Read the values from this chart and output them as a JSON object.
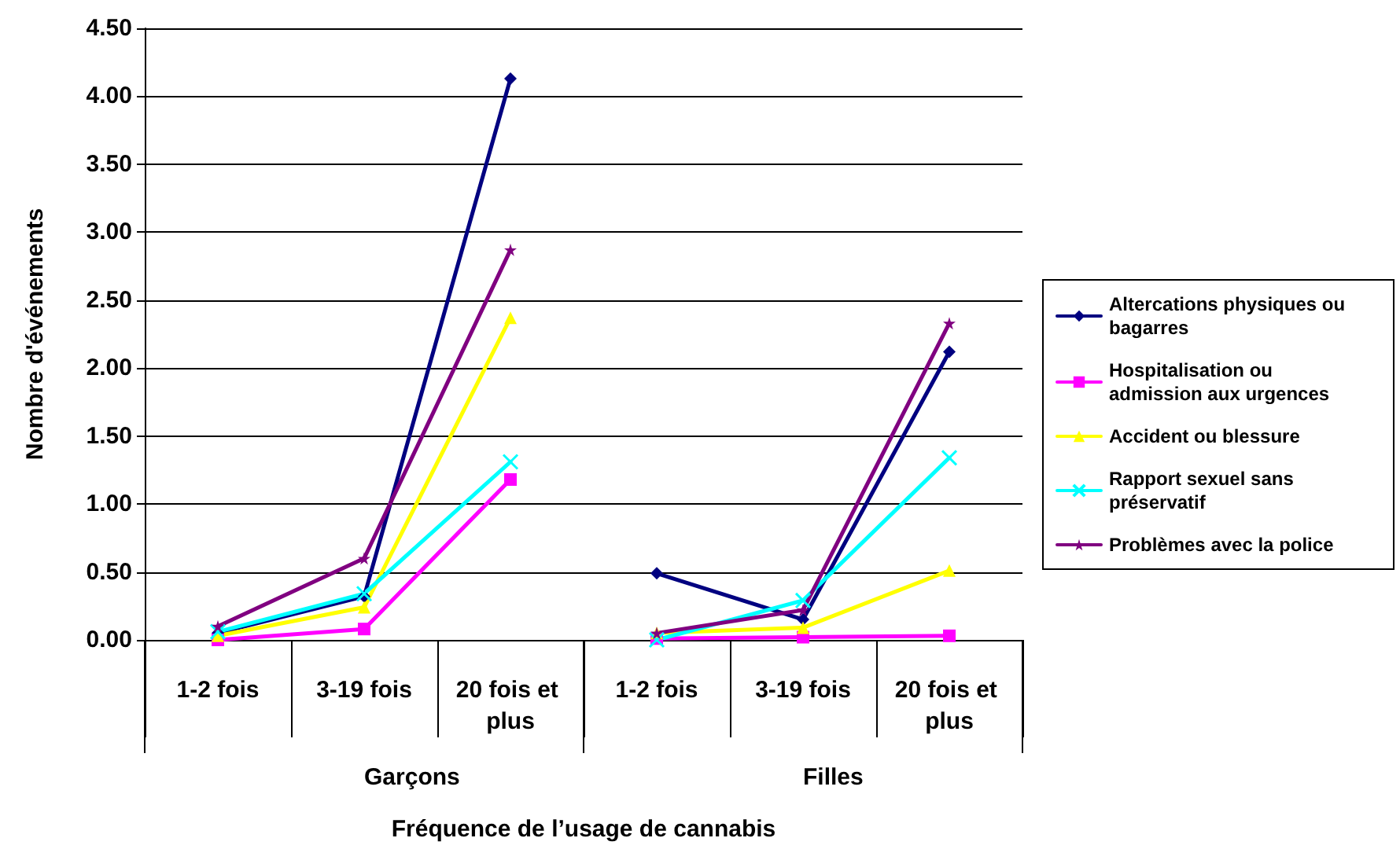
{
  "chart_data": {
    "type": "line",
    "xlabel": "Fréquence de l’usage de cannabis",
    "ylabel": "Nombre d'événements",
    "categories": [
      "1-2 fois",
      "3-19 fois",
      "20 fois et plus",
      "1-2 fois",
      "3-19 fois",
      "20 fois et plus"
    ],
    "annotations": [
      "Garçons",
      "Filles"
    ],
    "ylim": [
      0,
      4.5
    ],
    "yticks": [
      {
        "value": 0,
        "label": "0.00"
      },
      {
        "value": 0.5,
        "label": "0.50"
      },
      {
        "value": 1,
        "label": "1.00"
      },
      {
        "value": 1.5,
        "label": "1.50"
      },
      {
        "value": 2,
        "label": "2.00"
      },
      {
        "value": 2.5,
        "label": "2.50"
      },
      {
        "value": 3,
        "label": "3.00"
      },
      {
        "value": 3.5,
        "label": "3.50"
      },
      {
        "value": 4,
        "label": "4.00"
      },
      {
        "value": 4.5,
        "label": "4.50"
      }
    ],
    "grid": "y",
    "legend": "right",
    "series": [
      {
        "name": "Altercations physiques ou bagarres",
        "color": "#000080",
        "marker": "diamond",
        "values": [
          0.05,
          0.32,
          4.13,
          0.49,
          0.15,
          2.12
        ]
      },
      {
        "name": "Hospitalisation ou admission aux urgences",
        "color": "#ff00ff",
        "marker": "square",
        "values": [
          0.0,
          0.08,
          1.18,
          0.01,
          0.02,
          0.03
        ]
      },
      {
        "name": "Accident ou blessure",
        "color": "#ffff00",
        "marker": "triangle",
        "values": [
          0.03,
          0.24,
          2.37,
          0.05,
          0.09,
          0.51
        ]
      },
      {
        "name": "Rapport sexuel sans préservatif",
        "color": "#00ffff",
        "marker": "cross",
        "values": [
          0.06,
          0.34,
          1.31,
          0.0,
          0.29,
          1.34
        ]
      },
      {
        "name": "Problèmes avec la police",
        "color": "#800080",
        "marker": "star",
        "values": [
          0.1,
          0.6,
          2.87,
          0.05,
          0.22,
          2.33
        ]
      }
    ]
  }
}
